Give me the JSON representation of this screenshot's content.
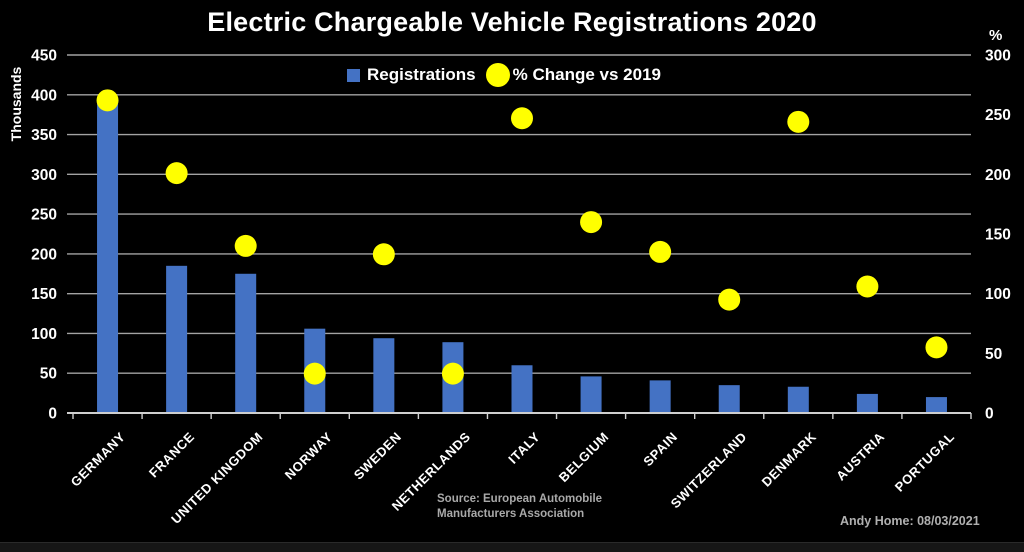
{
  "chart_data": {
    "type": "bar",
    "title": "Electric Chargeable Vehicle Registrations 2020",
    "categories": [
      "GERMANY",
      "FRANCE",
      "UNITED KINGDOM",
      "NORWAY",
      "SWEDEN",
      "NETHERLANDS",
      "ITALY",
      "BELGIUM",
      "SPAIN",
      "SWITZERLAND",
      "DENMARK",
      "AUSTRIA",
      "PORTUGAL"
    ],
    "series": [
      {
        "name": "Registrations",
        "type": "bar",
        "axis": "left",
        "unit": "thousands",
        "color": "#4472C4",
        "values": [
          395,
          185,
          175,
          106,
          94,
          89,
          60,
          46,
          41,
          35,
          33,
          24,
          20
        ]
      },
      {
        "name": "% Change vs 2019",
        "type": "scatter",
        "axis": "right",
        "unit": "%",
        "color": "#FFFF00",
        "values": [
          262,
          201,
          140,
          33,
          133,
          33,
          247,
          160,
          135,
          95,
          244,
          106,
          55
        ]
      }
    ],
    "left_axis": {
      "label": "Thousands",
      "min": 0,
      "max": 450,
      "step": 50
    },
    "right_axis": {
      "label": "%",
      "min": 0,
      "max": 300,
      "step": 50
    },
    "grid": true,
    "legend_position": "top-center",
    "background": "#000000"
  },
  "colors": {
    "bar": "#4472C4",
    "dot": "#FFFF00",
    "gridline": "#a3a3a3",
    "baseline": "#cfcfcf",
    "axis_text": "#ffffff",
    "muted_text": "#a9a9a9"
  },
  "footnotes": {
    "source_line1": "Source: European Automobile",
    "source_line2": "Manufacturers Association",
    "credit": "Andy Home: 08/03/2021"
  }
}
